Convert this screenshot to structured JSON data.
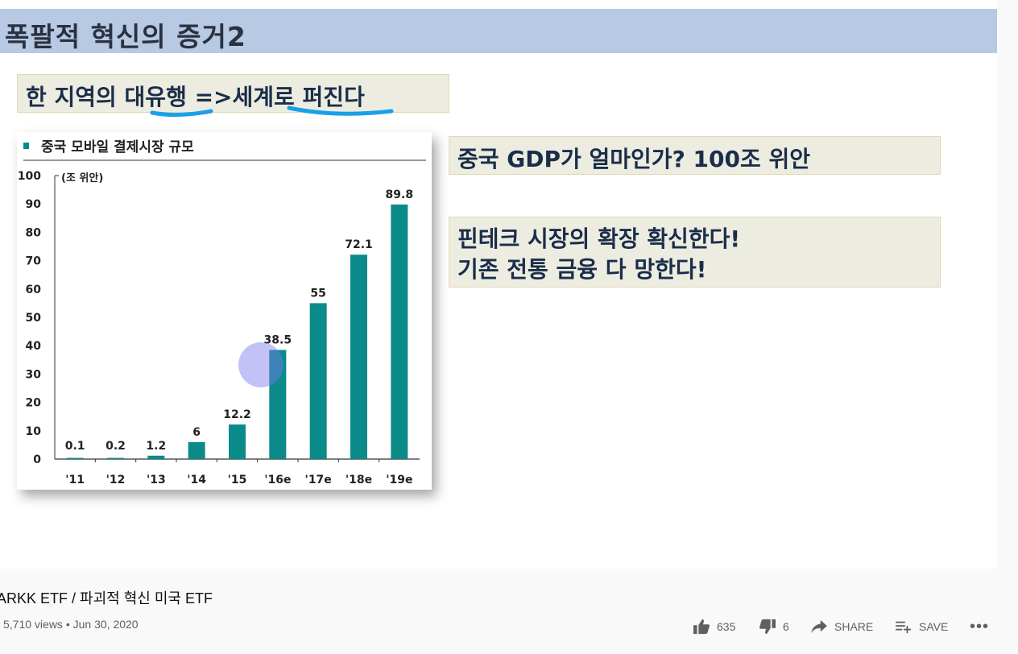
{
  "slide": {
    "title": "폭팔적 혁신의 증거2",
    "subtitle_prefix": "한 지역의 ",
    "subtitle_u1": "대유",
    "subtitle_mid": "행 =>",
    "subtitle_u2": "세계로 퍼진",
    "subtitle_suffix": "다",
    "gdp_callout": "중국 GDP가 얼마인가? 100조 위안",
    "fintech_line1": "핀테크 시장의 확장 확신한다!",
    "fintech_line2": "기존 전통 금융 다 망한다!",
    "underline_color": "#1aa0e8"
  },
  "chart_data": {
    "type": "bar",
    "title": "중국 모바일 결제시장 규모",
    "unit_label": "(조 위안)",
    "categories": [
      "'11",
      "'12",
      "'13",
      "'14",
      "'15",
      "'16e",
      "'17e",
      "'18e",
      "'19e"
    ],
    "values": [
      0.1,
      0.2,
      1.2,
      6,
      12.2,
      38.5,
      55,
      72.1,
      89.8
    ],
    "value_labels": [
      "0.1",
      "0.2",
      "1.2",
      "6",
      "12.2",
      "38.5",
      "55",
      "72.1",
      "89.8"
    ],
    "y_ticks": [
      0,
      10,
      20,
      30,
      40,
      50,
      60,
      70,
      80,
      90,
      100
    ],
    "ylim": [
      0,
      100
    ],
    "bar_color": "#0b8a8a",
    "grid": false
  },
  "video": {
    "title": "ARKK ETF / 파괴적 혁신 미국 ETF",
    "views": "5,710 views",
    "separator": "•",
    "date": "Jun 30, 2020",
    "likes": "635",
    "dislikes": "6",
    "share_label": "SHARE",
    "save_label": "SAVE",
    "more_label": "•••"
  },
  "icons": {
    "like": "thumbs-up-icon",
    "dislike": "thumbs-down-icon",
    "share": "share-arrow-icon",
    "save": "playlist-add-icon",
    "more": "more-horizontal-icon"
  }
}
